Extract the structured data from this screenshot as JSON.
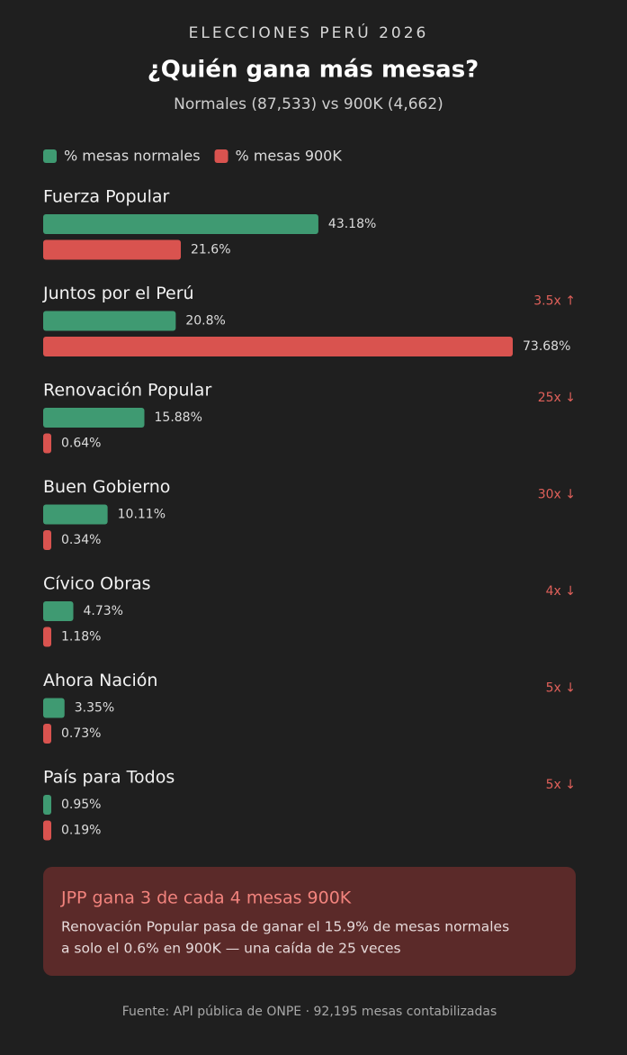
{
  "header": {
    "kicker": "ELECCIONES PERÚ 2026",
    "title": "¿Quién gana más mesas?",
    "subtitle": "Normales (87,533) vs 900K (4,662)"
  },
  "chart_data": {
    "type": "bar",
    "orientation": "horizontal",
    "categories": [
      "Fuerza Popular",
      "Juntos por el Perú",
      "Renovación Popular",
      "Buen Gobierno",
      "Cívico Obras",
      "Ahora Nación",
      "País para Todos"
    ],
    "series": [
      {
        "name": "% mesas normales",
        "color": "#3f9a72",
        "values": [
          43.18,
          20.8,
          15.88,
          10.11,
          4.73,
          3.35,
          0.95
        ],
        "value_labels": [
          "43.18%",
          "20.8%",
          "15.88%",
          "10.11%",
          "4.73%",
          "3.35%",
          "0.95%"
        ]
      },
      {
        "name": "% mesas 900K",
        "color": "#d9534f",
        "values": [
          21.6,
          73.68,
          0.64,
          0.34,
          1.18,
          0.73,
          0.19
        ],
        "value_labels": [
          "21.6%",
          "73.68%",
          "0.64%",
          "0.34%",
          "1.18%",
          "0.73%",
          "0.19%"
        ]
      }
    ],
    "annotations": [
      null,
      "3.5x ↑",
      "25x ↓",
      "30x ↓",
      "4x ↓",
      "5x ↓",
      "5x ↓"
    ]
  },
  "callout": {
    "title": "JPP gana 3 de cada 4 mesas 900K",
    "lines": [
      "Renovación Popular pasa de ganar el 15.9% de mesas normales",
      "a solo el 0.6% en 900K — una caída de 25 veces"
    ]
  },
  "footer": "Fuente: API pública de ONPE · 92,195 mesas contabilizadas"
}
